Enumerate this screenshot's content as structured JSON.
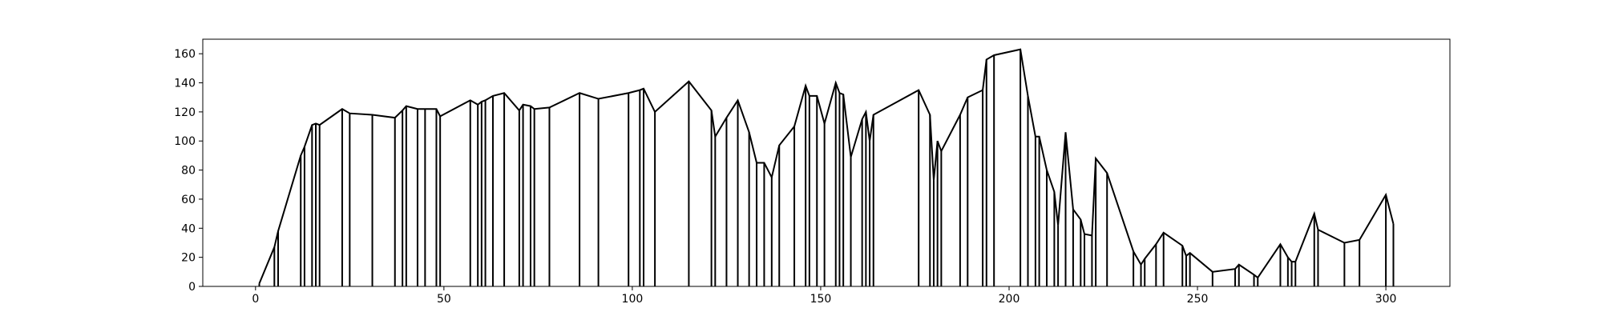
{
  "chart_data": {
    "type": "line",
    "color": "#000000",
    "drop_lines": true,
    "x": [
      1,
      5,
      6,
      12,
      13,
      15,
      16,
      17,
      23,
      25,
      31,
      37,
      39,
      40,
      43,
      45,
      48,
      49,
      57,
      59,
      60,
      61,
      63,
      66,
      70,
      71,
      73,
      74,
      78,
      86,
      91,
      99,
      102,
      103,
      106,
      115,
      121,
      122,
      125,
      128,
      131,
      133,
      135,
      137,
      139,
      143,
      146,
      147,
      149,
      151,
      154,
      155,
      156,
      158,
      161,
      162,
      163,
      164,
      176,
      179,
      180,
      181,
      182,
      187,
      189,
      193,
      194,
      196,
      203,
      205,
      207,
      208,
      210,
      212,
      213,
      215,
      217,
      219,
      220,
      222,
      223,
      226,
      233,
      235,
      236,
      239,
      241,
      246,
      247,
      248,
      254,
      260,
      261,
      265,
      266,
      272,
      274,
      275,
      276,
      281,
      282,
      289,
      293,
      300,
      302
    ],
    "values": [
      2,
      27,
      38,
      90,
      96,
      111,
      112,
      111,
      122,
      119,
      118,
      116,
      121,
      124,
      122,
      122,
      122,
      117,
      128,
      125,
      127,
      128,
      131,
      133,
      121,
      125,
      124,
      122,
      123,
      133,
      129,
      133,
      135,
      136,
      120,
      141,
      121,
      103,
      116,
      128,
      106,
      85,
      85,
      75,
      97,
      110,
      138,
      131,
      131,
      112,
      140,
      133,
      132,
      89,
      115,
      120,
      100,
      118,
      135,
      118,
      73,
      100,
      93,
      118,
      130,
      135,
      156,
      159,
      163,
      131,
      103,
      103,
      80,
      65,
      42,
      106,
      53,
      46,
      36,
      35,
      88,
      78,
      24,
      15,
      19,
      29,
      37,
      28,
      21,
      23,
      10,
      12,
      15,
      8,
      6,
      29,
      20,
      17,
      17,
      50,
      39,
      30,
      32,
      63,
      43
    ],
    "xlim": [
      -14,
      317
    ],
    "xticks": [
      0,
      50,
      100,
      150,
      200,
      250,
      300
    ],
    "ylim": [
      0,
      170
    ],
    "yticks": [
      0,
      20,
      40,
      60,
      80,
      100,
      120,
      140,
      160
    ]
  }
}
